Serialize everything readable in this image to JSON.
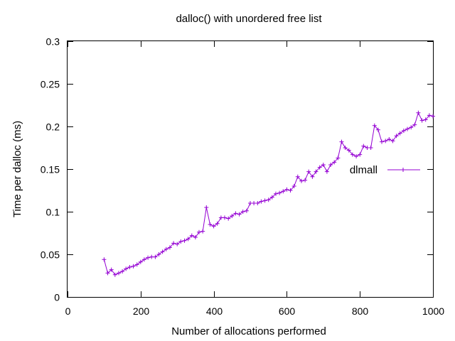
{
  "chart_data": {
    "type": "line",
    "title": "dalloc() with unordered free list",
    "xlabel": "Number of allocations performed",
    "ylabel": "Time per dalloc (ms)",
    "xlim": [
      0,
      1000
    ],
    "ylim": [
      0,
      0.3
    ],
    "xticks": [
      0,
      200,
      400,
      600,
      800,
      1000
    ],
    "yticks": [
      0,
      0.05,
      0.1,
      0.15,
      0.2,
      0.25,
      0.3
    ],
    "xtick_labels": [
      "0",
      "200",
      "400",
      "600",
      "800",
      "1000"
    ],
    "ytick_labels": [
      "0",
      "0.05",
      "0.1",
      "0.15",
      "0.2",
      "0.25",
      "0.3"
    ],
    "grid": false,
    "legend_position": "right",
    "series": [
      {
        "name": "dlmall",
        "color": "#9400d3",
        "marker": "plus",
        "x": [
          100,
          110,
          120,
          130,
          140,
          150,
          160,
          170,
          180,
          190,
          200,
          210,
          220,
          230,
          240,
          250,
          260,
          270,
          280,
          290,
          300,
          310,
          320,
          330,
          340,
          350,
          360,
          370,
          380,
          390,
          400,
          410,
          420,
          430,
          440,
          450,
          460,
          470,
          480,
          490,
          500,
          510,
          520,
          530,
          540,
          550,
          560,
          570,
          580,
          590,
          600,
          610,
          620,
          630,
          640,
          650,
          660,
          670,
          680,
          690,
          700,
          710,
          720,
          730,
          740,
          750,
          760,
          770,
          780,
          790,
          800,
          810,
          820,
          830,
          840,
          850,
          860,
          870,
          880,
          890,
          900,
          910,
          920,
          930,
          940,
          950,
          960,
          970,
          980,
          990,
          1000
        ],
        "y": [
          0.044,
          0.028,
          0.032,
          0.026,
          0.028,
          0.03,
          0.033,
          0.035,
          0.036,
          0.038,
          0.041,
          0.044,
          0.046,
          0.047,
          0.047,
          0.05,
          0.053,
          0.056,
          0.058,
          0.063,
          0.062,
          0.065,
          0.066,
          0.068,
          0.072,
          0.07,
          0.076,
          0.077,
          0.105,
          0.085,
          0.083,
          0.086,
          0.093,
          0.093,
          0.092,
          0.095,
          0.098,
          0.097,
          0.1,
          0.101,
          0.11,
          0.11,
          0.11,
          0.112,
          0.113,
          0.114,
          0.117,
          0.121,
          0.122,
          0.124,
          0.126,
          0.125,
          0.13,
          0.141,
          0.136,
          0.137,
          0.147,
          0.141,
          0.147,
          0.152,
          0.155,
          0.147,
          0.155,
          0.158,
          0.163,
          0.182,
          0.175,
          0.172,
          0.167,
          0.165,
          0.167,
          0.177,
          0.175,
          0.175,
          0.201,
          0.196,
          0.182,
          0.183,
          0.185,
          0.183,
          0.189,
          0.192,
          0.195,
          0.197,
          0.199,
          0.202,
          0.216,
          0.207,
          0.208,
          0.213,
          0.212
        ]
      }
    ]
  }
}
